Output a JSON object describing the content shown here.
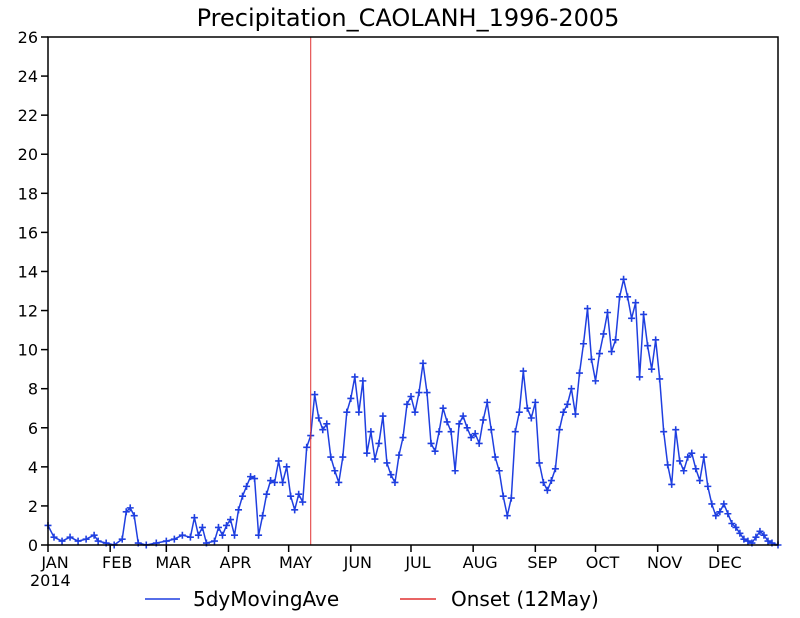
{
  "chart_data": {
    "type": "line",
    "title": "Precipitation_CAOLANH_1996-2005",
    "xlabel": "",
    "ylabel": "",
    "ylim": [
      0,
      26
    ],
    "yticks": [
      "0",
      "2",
      "4",
      "6",
      "8",
      "10",
      "12",
      "14",
      "16",
      "18",
      "20",
      "22",
      "24",
      "26"
    ],
    "xlim": [
      1,
      365
    ],
    "xticks": [
      {
        "label": "JAN",
        "day": 1
      },
      {
        "label": "FEB",
        "day": 32
      },
      {
        "label": "MAR",
        "day": 60
      },
      {
        "label": "APR",
        "day": 91
      },
      {
        "label": "MAY",
        "day": 121
      },
      {
        "label": "JUN",
        "day": 152
      },
      {
        "label": "JUL",
        "day": 182
      },
      {
        "label": "AUG",
        "day": 213
      },
      {
        "label": "SEP",
        "day": 244
      },
      {
        "label": "OCT",
        "day": 274
      },
      {
        "label": "NOV",
        "day": 305
      },
      {
        "label": "DEC",
        "day": 335
      }
    ],
    "year_label": "2014",
    "series": [
      {
        "name": "5dyMovingAve",
        "color": "#1f3fe0",
        "marker": "plus",
        "points": [
          [
            1,
            1.0
          ],
          [
            4,
            0.4
          ],
          [
            8,
            0.2
          ],
          [
            12,
            0.4
          ],
          [
            16,
            0.2
          ],
          [
            20,
            0.3
          ],
          [
            24,
            0.5
          ],
          [
            26,
            0.2
          ],
          [
            30,
            0.1
          ],
          [
            34,
            0.0
          ],
          [
            38,
            0.3
          ],
          [
            40,
            1.7
          ],
          [
            42,
            1.9
          ],
          [
            44,
            1.5
          ],
          [
            46,
            0.1
          ],
          [
            50,
            0.0
          ],
          [
            55,
            0.1
          ],
          [
            60,
            0.2
          ],
          [
            64,
            0.3
          ],
          [
            68,
            0.5
          ],
          [
            72,
            0.4
          ],
          [
            74,
            1.4
          ],
          [
            76,
            0.5
          ],
          [
            78,
            0.9
          ],
          [
            80,
            0.1
          ],
          [
            84,
            0.2
          ],
          [
            86,
            0.9
          ],
          [
            88,
            0.5
          ],
          [
            90,
            1.0
          ],
          [
            92,
            1.3
          ],
          [
            94,
            0.5
          ],
          [
            96,
            1.8
          ],
          [
            98,
            2.5
          ],
          [
            100,
            3.0
          ],
          [
            102,
            3.5
          ],
          [
            104,
            3.4
          ],
          [
            106,
            0.5
          ],
          [
            108,
            1.5
          ],
          [
            110,
            2.6
          ],
          [
            112,
            3.3
          ],
          [
            114,
            3.2
          ],
          [
            116,
            4.3
          ],
          [
            118,
            3.2
          ],
          [
            120,
            4.0
          ],
          [
            122,
            2.5
          ],
          [
            124,
            1.8
          ],
          [
            126,
            2.6
          ],
          [
            128,
            2.2
          ],
          [
            130,
            5.0
          ],
          [
            132,
            5.6
          ],
          [
            134,
            7.7
          ],
          [
            136,
            6.5
          ],
          [
            138,
            5.9
          ],
          [
            140,
            6.2
          ],
          [
            142,
            4.5
          ],
          [
            144,
            3.8
          ],
          [
            146,
            3.2
          ],
          [
            148,
            4.5
          ],
          [
            150,
            6.8
          ],
          [
            152,
            7.5
          ],
          [
            154,
            8.6
          ],
          [
            156,
            6.8
          ],
          [
            158,
            8.4
          ],
          [
            160,
            4.7
          ],
          [
            162,
            5.8
          ],
          [
            164,
            4.4
          ],
          [
            166,
            5.2
          ],
          [
            168,
            6.6
          ],
          [
            170,
            4.2
          ],
          [
            172,
            3.6
          ],
          [
            174,
            3.2
          ],
          [
            176,
            4.6
          ],
          [
            178,
            5.5
          ],
          [
            180,
            7.2
          ],
          [
            182,
            7.6
          ],
          [
            184,
            6.8
          ],
          [
            186,
            7.8
          ],
          [
            188,
            9.3
          ],
          [
            190,
            7.8
          ],
          [
            192,
            5.2
          ],
          [
            194,
            4.8
          ],
          [
            196,
            5.8
          ],
          [
            198,
            7.0
          ],
          [
            200,
            6.3
          ],
          [
            202,
            5.8
          ],
          [
            204,
            3.8
          ],
          [
            206,
            6.2
          ],
          [
            208,
            6.6
          ],
          [
            210,
            6.0
          ],
          [
            212,
            5.5
          ],
          [
            214,
            5.7
          ],
          [
            216,
            5.2
          ],
          [
            218,
            6.4
          ],
          [
            220,
            7.3
          ],
          [
            222,
            5.9
          ],
          [
            224,
            4.5
          ],
          [
            226,
            3.8
          ],
          [
            228,
            2.5
          ],
          [
            230,
            1.5
          ],
          [
            232,
            2.4
          ],
          [
            234,
            5.8
          ],
          [
            236,
            6.8
          ],
          [
            238,
            8.9
          ],
          [
            240,
            7.0
          ],
          [
            242,
            6.5
          ],
          [
            244,
            7.3
          ],
          [
            246,
            4.2
          ],
          [
            248,
            3.2
          ],
          [
            250,
            2.8
          ],
          [
            252,
            3.3
          ],
          [
            254,
            3.9
          ],
          [
            256,
            5.9
          ],
          [
            258,
            6.8
          ],
          [
            260,
            7.2
          ],
          [
            262,
            8.0
          ],
          [
            264,
            6.7
          ],
          [
            266,
            8.8
          ],
          [
            268,
            10.3
          ],
          [
            270,
            12.1
          ],
          [
            272,
            9.5
          ],
          [
            274,
            8.4
          ],
          [
            276,
            9.8
          ],
          [
            278,
            10.8
          ],
          [
            280,
            11.9
          ],
          [
            282,
            9.9
          ],
          [
            284,
            10.5
          ],
          [
            286,
            12.7
          ],
          [
            288,
            13.6
          ],
          [
            290,
            12.7
          ],
          [
            292,
            11.6
          ],
          [
            294,
            12.4
          ],
          [
            296,
            8.6
          ],
          [
            298,
            11.8
          ],
          [
            300,
            10.2
          ],
          [
            302,
            9.0
          ],
          [
            304,
            10.5
          ],
          [
            306,
            8.5
          ],
          [
            308,
            5.8
          ],
          [
            310,
            4.1
          ],
          [
            312,
            3.1
          ],
          [
            314,
            5.9
          ],
          [
            316,
            4.3
          ],
          [
            318,
            3.8
          ],
          [
            320,
            4.5
          ],
          [
            322,
            4.7
          ],
          [
            324,
            3.9
          ],
          [
            326,
            3.3
          ],
          [
            328,
            4.5
          ],
          [
            330,
            3.0
          ],
          [
            332,
            2.1
          ],
          [
            334,
            1.5
          ],
          [
            336,
            1.7
          ],
          [
            338,
            2.1
          ],
          [
            340,
            1.6
          ],
          [
            342,
            1.1
          ],
          [
            344,
            0.9
          ],
          [
            346,
            0.6
          ],
          [
            348,
            0.3
          ],
          [
            350,
            0.2
          ],
          [
            352,
            0.1
          ],
          [
            354,
            0.4
          ],
          [
            356,
            0.7
          ],
          [
            358,
            0.5
          ],
          [
            360,
            0.2
          ],
          [
            362,
            0.1
          ],
          [
            365,
            0.0
          ]
        ]
      },
      {
        "name": "Onset (12May)",
        "color": "#e03030",
        "type": "vline",
        "x": 132
      }
    ]
  }
}
